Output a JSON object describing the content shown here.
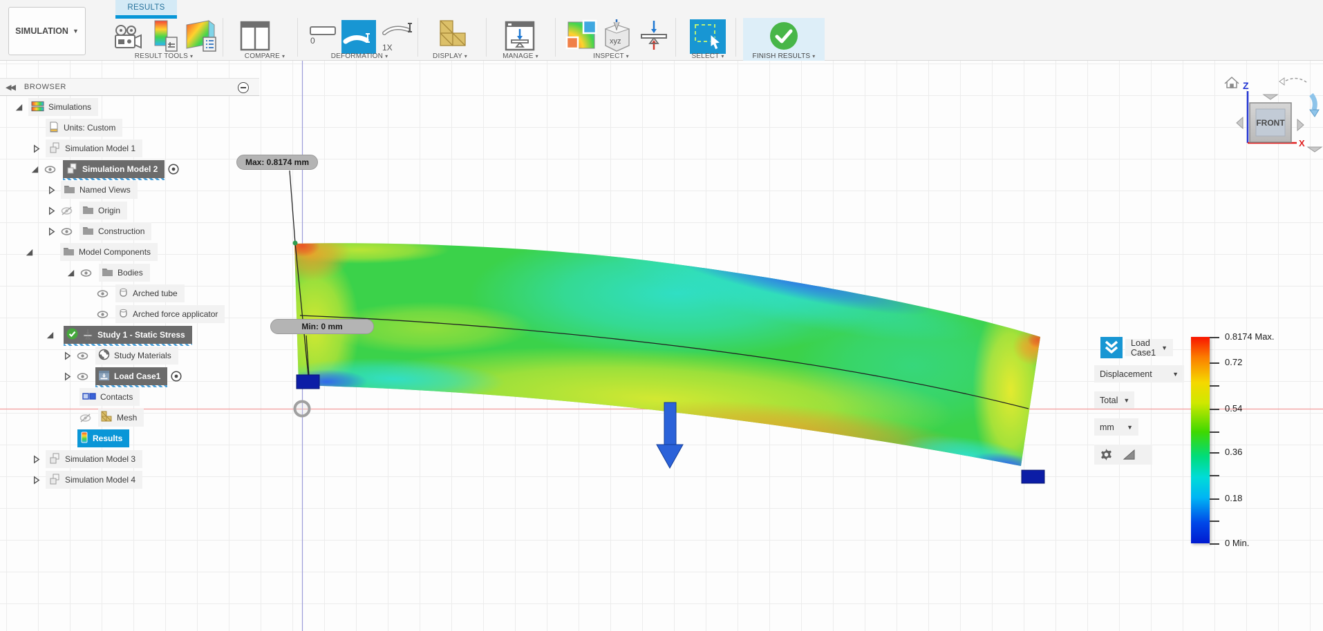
{
  "workspace": {
    "label": "SIMULATION"
  },
  "tab": {
    "label": "RESULTS"
  },
  "toolbar": {
    "groups": [
      {
        "label": "RESULT TOOLS"
      },
      {
        "label": "COMPARE"
      },
      {
        "label": "DEFORMATION"
      },
      {
        "label": "DISPLAY"
      },
      {
        "label": "MANAGE"
      },
      {
        "label": "INSPECT"
      },
      {
        "label": "SELECT"
      },
      {
        "label": "FINISH RESULTS"
      }
    ],
    "deformation": {
      "zero_label": "0",
      "one_x_label": "1X"
    }
  },
  "browser": {
    "title": "BROWSER",
    "tree": [
      {
        "label": "Simulations",
        "icon": "simulations",
        "indent": 20,
        "expander": "expanded"
      },
      {
        "label": "Units: Custom",
        "icon": "document",
        "indent": 66
      },
      {
        "label": "Simulation Model 1",
        "icon": "component",
        "indent": 45,
        "expander": "collapsed"
      },
      {
        "label": "Simulation Model 2",
        "icon": "component",
        "indent": 43,
        "expander": "expanded",
        "eye": "on",
        "selected": "dark",
        "radio": true
      },
      {
        "label": "Named Views",
        "icon": "folder",
        "indent": 67,
        "expander": "collapsed"
      },
      {
        "label": "Origin",
        "icon": "folder",
        "indent": 67,
        "expander": "collapsed",
        "eye": "off"
      },
      {
        "label": "Construction",
        "icon": "folder",
        "indent": 67,
        "expander": "collapsed",
        "eye": "on"
      },
      {
        "label": "Model Components",
        "icon": "folder",
        "indent": 35,
        "expander": "expanded",
        "gap": 37
      },
      {
        "label": "Bodies",
        "icon": "folder",
        "indent": 95,
        "expander": "expanded",
        "eye": "on"
      },
      {
        "label": "Arched tube",
        "icon": "cylinder",
        "indent": 140,
        "eye": "on"
      },
      {
        "label": "Arched force applicator",
        "icon": "cylinder",
        "indent": 140,
        "eye": "on"
      },
      {
        "label": "Study 1 - Static Stress",
        "icon": "study",
        "indent": 65,
        "expander": "expanded",
        "gap": 12,
        "check": true,
        "selected": "dark"
      },
      {
        "label": "Study Materials",
        "icon": "materials",
        "indent": 90,
        "expander": "collapsed",
        "eye": "on"
      },
      {
        "label": "Load Case1",
        "icon": "loadcase",
        "indent": 90,
        "expander": "collapsed",
        "eye": "on",
        "selected": "dark",
        "radio": true
      },
      {
        "label": "Contacts",
        "icon": "contacts",
        "indent": 115
      },
      {
        "label": "Mesh",
        "icon": "mesh",
        "indent": 115,
        "eye": "off"
      },
      {
        "label": "Results",
        "icon": "results",
        "indent": 112,
        "selected": "blue"
      },
      {
        "label": "Simulation Model 3",
        "icon": "component",
        "indent": 45,
        "expander": "collapsed"
      },
      {
        "label": "Simulation Model 4",
        "icon": "component",
        "indent": 45,
        "expander": "collapsed"
      }
    ]
  },
  "viewport": {
    "max_label": "Max: 0.8174 mm",
    "min_label": "Min: 0 mm",
    "viewcube": {
      "face": "FRONT",
      "axis_z": "Z",
      "axis_x": "X"
    }
  },
  "legend": {
    "load_case": "Load Case1",
    "result_type": "Displacement",
    "component": "Total",
    "unit": "mm",
    "scale": {
      "max": "0.8174 Max.",
      "ticks": [
        "0.72",
        "0.54",
        "0.36",
        "0.18"
      ],
      "min": "0 Min."
    }
  }
}
